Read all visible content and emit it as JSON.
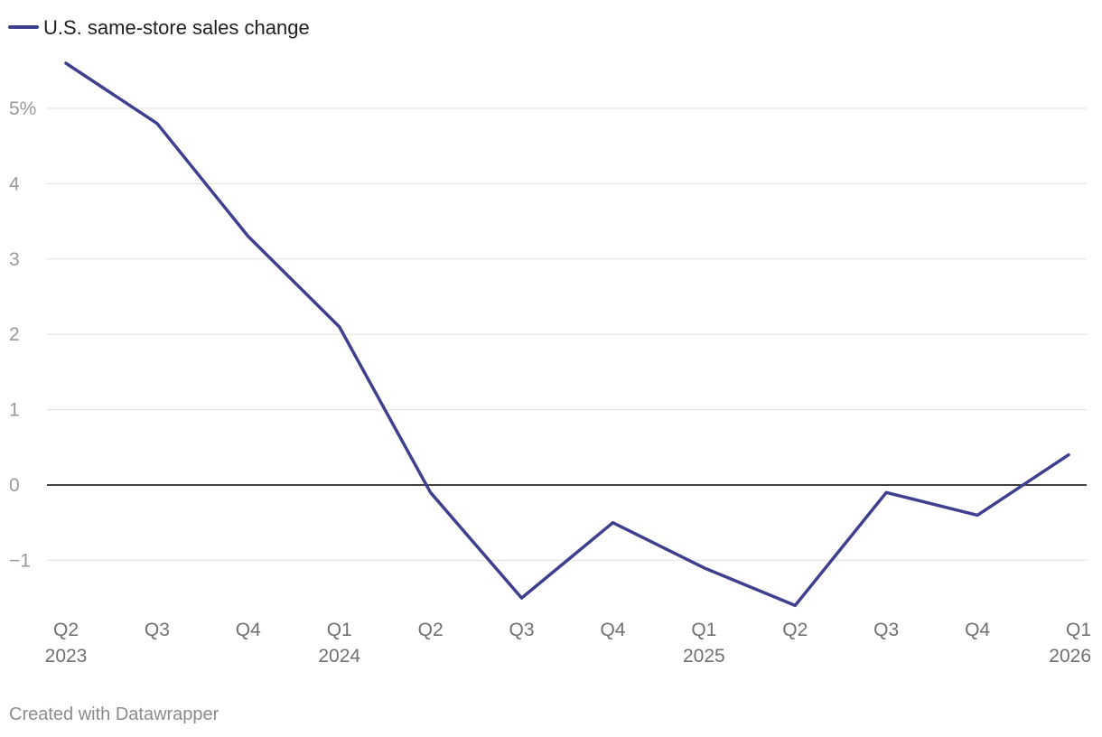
{
  "chart_data": {
    "type": "line",
    "x": [
      "Q2 2023",
      "Q3 2023",
      "Q4 2023",
      "Q1 2024",
      "Q2 2024",
      "Q3 2024",
      "Q4 2024",
      "Q1 2025",
      "Q2 2025",
      "Q3 2025",
      "Q4 2025",
      "Q1 2026"
    ],
    "x_tick_labels": [
      {
        "line1": "Q2",
        "line2": "2023"
      },
      {
        "line1": "Q3",
        "line2": ""
      },
      {
        "line1": "Q4",
        "line2": ""
      },
      {
        "line1": "Q1",
        "line2": "2024"
      },
      {
        "line1": "Q2",
        "line2": ""
      },
      {
        "line1": "Q3",
        "line2": ""
      },
      {
        "line1": "Q4",
        "line2": ""
      },
      {
        "line1": "Q1",
        "line2": "2025"
      },
      {
        "line1": "Q2",
        "line2": ""
      },
      {
        "line1": "Q3",
        "line2": ""
      },
      {
        "line1": "Q4",
        "line2": ""
      },
      {
        "line1": "Q1",
        "line2": "2026"
      }
    ],
    "series": [
      {
        "name": "U.S. same-store sales change",
        "color": "#3f3f8f",
        "values": [
          5.6,
          4.8,
          3.3,
          2.1,
          -0.1,
          -1.5,
          -0.5,
          -1.1,
          -1.6,
          -0.1,
          -0.4,
          0.4
        ]
      }
    ],
    "y_ticks": [
      5,
      4,
      3,
      2,
      1,
      0,
      -1
    ],
    "y_tick_labels": [
      "5%",
      "4",
      "3",
      "2",
      "1",
      "0",
      "−1"
    ],
    "ylim": [
      -1.6,
      5.6
    ],
    "grid": true,
    "zero_line": true,
    "legend": "top-left",
    "title": "",
    "xlabel": "",
    "ylabel": ""
  },
  "credit": "Created with Datawrapper",
  "colors": {
    "line": "#3f3f8f",
    "grid": "#e0e0e0",
    "zero": "#000000"
  }
}
